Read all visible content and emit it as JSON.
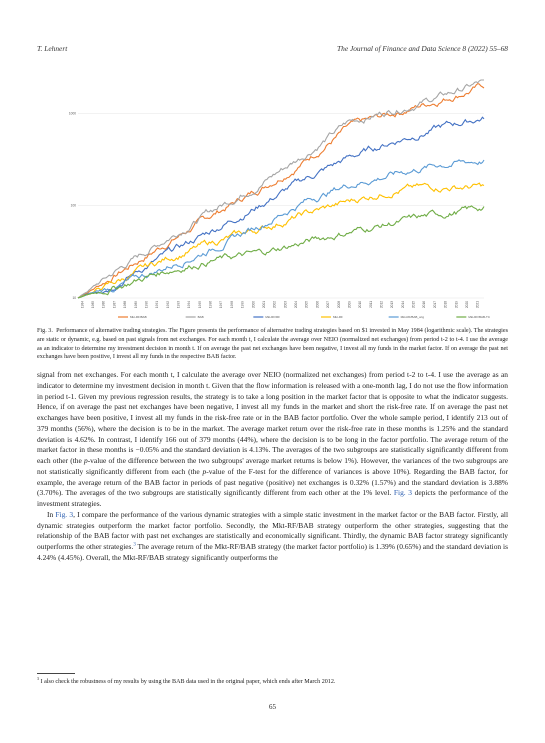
{
  "header": {
    "left": "T. Lehnert",
    "right": "The Journal of Finance and Data Science 8 (2022) 55–68"
  },
  "chart_data": {
    "type": "line",
    "log_scale": true,
    "y_ticks": [
      "1000",
      "100",
      "10"
    ],
    "ylim": [
      10,
      2300
    ],
    "x_start": "1984-05",
    "x_end": "2021-12",
    "x_tick_labels": [
      "1984",
      "1985",
      "1986",
      "1987",
      "1988",
      "1989",
      "1990",
      "1991",
      "1992",
      "1993",
      "1994",
      "1995",
      "1996",
      "1997",
      "1998",
      "1999",
      "2000",
      "2001",
      "2002",
      "2003",
      "2004",
      "2005",
      "2006",
      "2007",
      "2008",
      "2009",
      "2010",
      "2011",
      "2012",
      "2013",
      "2014",
      "2015",
      "2016",
      "2017",
      "2018",
      "2019",
      "2020",
      "2021"
    ],
    "series": [
      {
        "name": "Mkt-RF/BAB",
        "color": "#ed7d31",
        "values": [
          10,
          20,
          40,
          80,
          150,
          300,
          700,
          1000,
          1400,
          2000
        ]
      },
      {
        "name": "BAB",
        "color": "#a5a5a5",
        "values": [
          10,
          22,
          45,
          90,
          170,
          350,
          800,
          1100,
          1500,
          2200
        ]
      },
      {
        "name": "Mkt-RF/RF",
        "color": "#4472c4",
        "values": [
          10,
          16,
          30,
          55,
          100,
          190,
          330,
          500,
          700,
          900
        ]
      },
      {
        "name": "Mkt-RF",
        "color": "#ffc000",
        "values": [
          10,
          16,
          27,
          40,
          55,
          80,
          110,
          150,
          160,
          160
        ]
      },
      {
        "name": "Mkt-RF/BAB_orig",
        "color": "#5b9bd5",
        "values": [
          10,
          14,
          22,
          35,
          60,
          110,
          170,
          220,
          280,
          310
        ]
      },
      {
        "name": "Mkt-RF/BAB-TC",
        "color": "#70ad47",
        "values": [
          10,
          14,
          20,
          26,
          30,
          40,
          52,
          65,
          80,
          95
        ]
      }
    ]
  },
  "caption": {
    "label": "Fig. 3.",
    "text": "Performance of alternative trading strategies. The Figure presents the performance of alternative trading strategies based on $1 invested in May 1984 (logarithmic scale). The strategies are static or dynamic, e.g. based on past signals from net exchanges. For each month t, I calculate the average over NEIO (normalized net exchanges) from period t-2 to t-4. I use the average as an indicator to determine my investment decision in month t. If on average the past net exchanges have been negative, I invest all my funds in the market factor. If on average the past net exchanges have been positive, I invest all my funds in the respective BAB factor."
  },
  "body": {
    "p1_a": "signal from net exchanges. For each month t, I calculate the average over NEIO (normalized net exchanges) from period t-2 to t-4. I use the average as an indicator to determine my investment decision in month t. Given that the flow information is released with a one-month lag, I do not use the flow information in period t-1. Given my previous regression results, the strategy is to take a long position in the market factor that is opposite to what the indicator suggests. Hence, if on average the past net exchanges have been negative, I invest all my funds in the market and short the risk-free rate. If on average the past net exchanges have been positive, I invest all my funds in the risk-free rate or in the BAB factor portfolio. Over the whole sample period, I identify 213 out of 379 months (56%), where the decision is to be in the market. The average market return over the risk-free rate in these months is 1.25% and the standard deviation is 4.62%. In contrast, I identify 166 out of 379 months (44%), where the decision is to be long in the factor portfolio. The average return of the market factor in these months is −0.05% and the standard deviation is 4.13%. The averages of the two subgroups are statistically significantly different from each other (the ",
    "p1_pvalue": "p",
    "p1_b": "-value of the difference between the two subgroups' average market returns is below 1%). However, the variances of the two subgroups are not statistically significantly different from each (the ",
    "p1_pvalue2": "p",
    "p1_c": "-value of the F-test for the difference of variances is above 10%). Regarding the BAB factor, for example, the average return of the BAB factor in periods of past negative (positive) net exchanges is 0.32% (1.57%) and the standard deviation is 3.88% (3.70%). The averages of the two subgroups are statistically significantly different from each other at the 1% level. ",
    "p1_link": "Fig. 3",
    "p1_d": " depicts the performance of the investment strategies.",
    "p2_a": "In ",
    "p2_link": "Fig. 3",
    "p2_b": ", I compare the performance of the various dynamic strategies with a simple static investment in the market factor or the BAB factor. Firstly, all dynamic strategies outperform the market factor portfolio. Secondly, the Mkt-RF/BAB strategy outperform the other strategies, suggesting that the relationship of the BAB factor with past net exchanges are statistically and economically significant. Thirdly, the dynamic BAB factor strategy significantly outperforms the other strategies.",
    "p2_fnmark": "3",
    "p2_c": " The average return of the Mkt-RF/BAB strategy (the market factor portfolio) is 1.39% (0.65%) and the standard deviation is 4.24% (4.45%). Overall, the Mkt-RF/BAB strategy significantly outperforms the"
  },
  "footnote": {
    "mark": "3",
    "text": "I also check the robustness of my results by using the BAB data used in the original paper, which ends after March 2012."
  },
  "page_number": "65"
}
